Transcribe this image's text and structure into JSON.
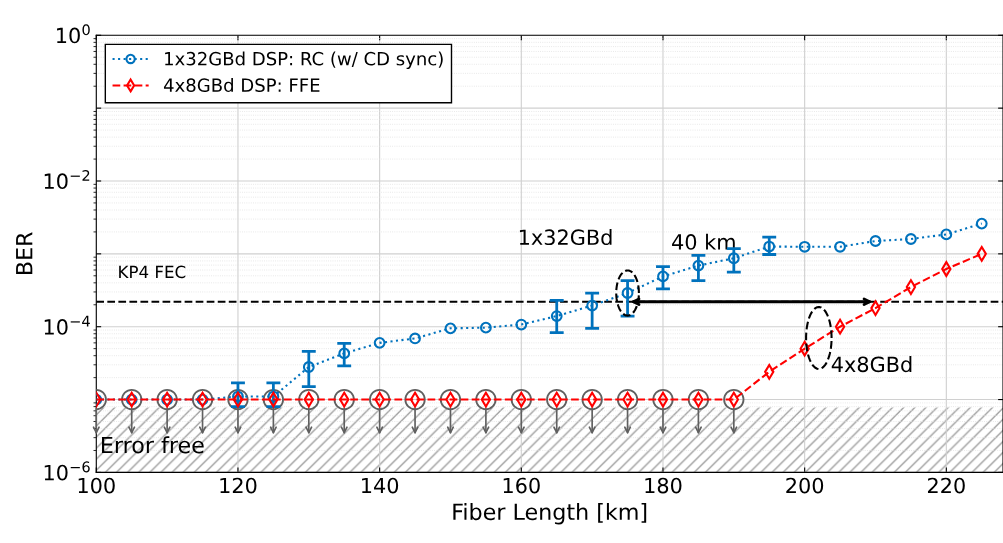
{
  "chart_data": {
    "type": "line",
    "xlabel": "Fiber Length [km]",
    "ylabel": "BER",
    "log": "y",
    "xlim": [
      100,
      228
    ],
    "xticks": [
      100,
      120,
      140,
      160,
      180,
      200,
      220
    ],
    "ylim": [
      1e-06,
      1
    ],
    "yticks": [
      {
        "value": 1,
        "label": "10$^{0}$"
      },
      {
        "value": 0.1,
        "label": null
      },
      {
        "value": 0.01,
        "label": "10$^{−2}$"
      },
      {
        "value": 0.001,
        "label": null
      },
      {
        "value": 0.0001,
        "label": "10$^{−4}$"
      },
      {
        "value": 1e-05,
        "label": null
      },
      {
        "value": 1e-06,
        "label": "10$^{−6}$"
      }
    ],
    "grid": true,
    "legend": "top left",
    "series": [
      {
        "name": "1x32GBd DSP: RC (w/ CD sync)",
        "color": "#0072bd",
        "marker": "circle",
        "line_style": "dotted",
        "x": [
          100,
          105,
          110,
          115,
          120,
          125,
          130,
          135,
          140,
          145,
          150,
          155,
          160,
          165,
          170,
          175,
          180,
          185,
          190,
          195,
          200,
          205,
          210,
          215,
          220,
          225
        ],
        "values": [
          1e-05,
          1e-05,
          1e-05,
          1e-05,
          1.1e-05,
          1.1e-05,
          2.8e-05,
          4.3e-05,
          6e-05,
          6.9e-05,
          9.5e-05,
          9.7e-05,
          0.000107,
          0.00014,
          0.000195,
          0.00029,
          0.00049,
          0.00069,
          0.00087,
          0.00126,
          0.00125,
          0.00125,
          0.0015,
          0.0016,
          0.00185,
          0.0026
        ],
        "errors": [
          null,
          null,
          null,
          null,
          [
            8e-06,
            1.7e-05
          ],
          [
            8e-06,
            1.7e-05
          ],
          [
            1.5e-05,
            4.6e-05
          ],
          [
            2.9e-05,
            5.9e-05
          ],
          null,
          null,
          null,
          null,
          null,
          [
            8.3e-05,
            0.00023
          ],
          [
            9.5e-05,
            0.00029
          ],
          [
            0.00014,
            0.00043
          ],
          [
            0.00033,
            0.00067
          ],
          [
            0.00043,
            0.00095
          ],
          [
            0.00056,
            0.00118
          ],
          [
            0.00098,
            0.0017
          ],
          null,
          null,
          null,
          null,
          null,
          null
        ]
      },
      {
        "name": "4x8GBd DSP: FFE",
        "color": "#ff0000",
        "marker": "diamond",
        "line_style": "dashed",
        "x": [
          100,
          105,
          110,
          115,
          120,
          125,
          130,
          135,
          140,
          145,
          150,
          155,
          160,
          165,
          170,
          175,
          180,
          185,
          190,
          195,
          200,
          205,
          210,
          215,
          220,
          225
        ],
        "values": [
          1e-05,
          1e-05,
          1e-05,
          1e-05,
          1e-05,
          1e-05,
          1e-05,
          1e-05,
          1e-05,
          1e-05,
          1e-05,
          1e-05,
          1e-05,
          1e-05,
          1e-05,
          1e-05,
          1e-05,
          1e-05,
          1e-05,
          2.4e-05,
          5e-05,
          0.0001,
          0.00018,
          0.00035,
          0.00062,
          0.001
        ]
      }
    ],
    "ref_lines": [
      {
        "axis": "y",
        "value": 0.00022,
        "label": "KP4 FEC",
        "color": "#000000",
        "line_style": "dashed"
      }
    ],
    "bands": [
      {
        "axis": "y",
        "from": 1e-06,
        "to": 7.8e-06,
        "label": "Error free",
        "color": "#a0a0a0"
      }
    ],
    "annotations": [
      {
        "text": "1x32GBd",
        "x": 175,
        "y": 0.00029
      },
      "4x8GBd",
      "40 km"
    ]
  }
}
